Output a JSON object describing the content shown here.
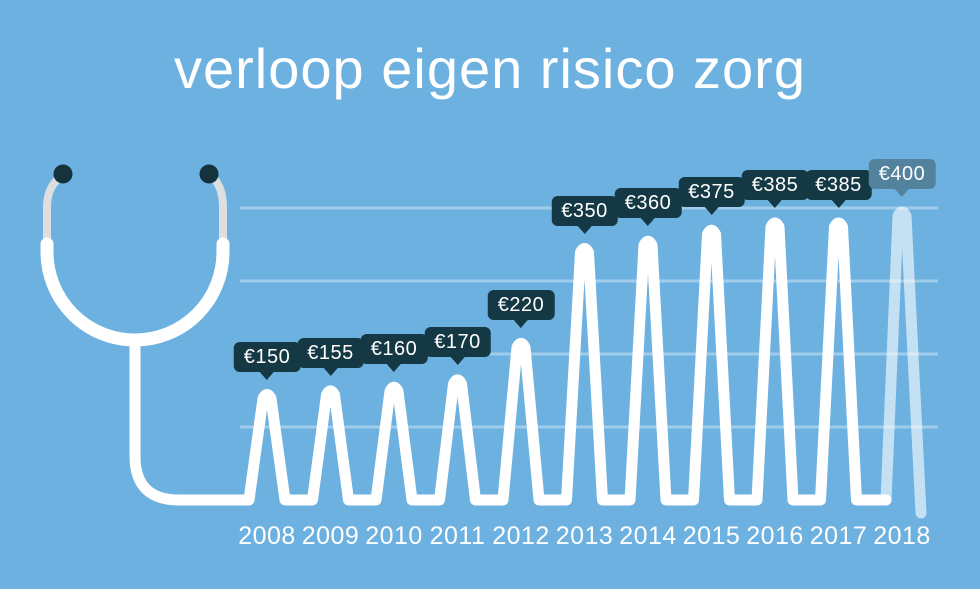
{
  "title": "verloop eigen risico zorg",
  "colors": {
    "background": "#6db1e1",
    "line": "#ffffff",
    "projected_line": "rgba(255,255,255,0.6)",
    "gridline": "rgba(255,255,255,0.35)",
    "tag_background": "#143844",
    "tag_background_projected": "#53829e",
    "text": "#ffffff",
    "earpiece": "#15333d",
    "ear_tube": "#dcdee0"
  },
  "chart_data": {
    "type": "line",
    "style": "ecg-spike-infographic",
    "title": "verloop eigen risico zorg",
    "categories": [
      "2008",
      "2009",
      "2010",
      "2011",
      "2012",
      "2013",
      "2014",
      "2015",
      "2016",
      "2017",
      "2018"
    ],
    "values": [
      150,
      155,
      160,
      170,
      220,
      350,
      360,
      375,
      385,
      385,
      400
    ],
    "value_labels": [
      "€150",
      "€155",
      "€160",
      "€170",
      "€220",
      "€350",
      "€360",
      "€375",
      "€385",
      "€385",
      "€400"
    ],
    "currency": "EUR",
    "ylim": [
      0,
      400
    ],
    "gridline_values": [
      100,
      200,
      300,
      400
    ],
    "grid": true,
    "legend": false,
    "xlabel": "",
    "ylabel": "",
    "last_point_projected": true,
    "decoration": "stethoscope"
  }
}
